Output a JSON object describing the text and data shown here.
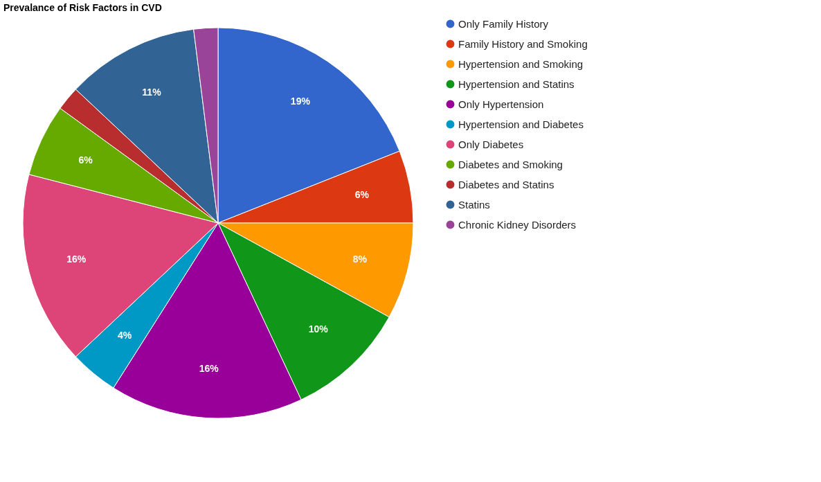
{
  "chart_data": {
    "type": "pie",
    "title": "Prevalance of Risk Factors in CVD",
    "categories": [
      "Only Family History",
      "Family History and Smoking",
      "Hypertension and Smoking",
      "Hypertension and Statins",
      "Only Hypertension",
      "Hypertension and Diabetes",
      "Only Diabetes",
      "Diabetes and Smoking",
      "Diabetes and Statins",
      "Statins",
      "Chronic Kidney Disorders"
    ],
    "values": [
      19,
      6,
      8,
      10,
      16,
      4,
      16,
      6,
      2,
      11,
      2
    ],
    "value_labels": [
      "19%",
      "6%",
      "8%",
      "10%",
      "16%",
      "4%",
      "16%",
      "6%",
      null,
      "11%",
      null
    ],
    "colors": [
      "#3366cc",
      "#dc3912",
      "#ff9900",
      "#109618",
      "#990099",
      "#0099c6",
      "#dd4477",
      "#66aa00",
      "#b82e2e",
      "#316395",
      "#994499"
    ],
    "legend": "right"
  }
}
